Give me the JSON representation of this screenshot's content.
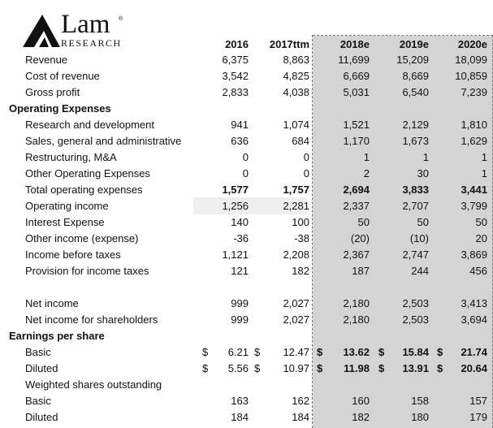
{
  "logo": {
    "name": "Lam",
    "reg": "®",
    "sub": "RESEARCH"
  },
  "headers": [
    "2016",
    "2017ttm",
    "2018e",
    "2019e",
    "2020e"
  ],
  "rows": [
    {
      "label": "Revenue",
      "type": "item",
      "v": [
        "6,375",
        "8,863",
        "11,699",
        "15,209",
        "18,099"
      ]
    },
    {
      "label": "Cost of revenue",
      "type": "item",
      "v": [
        "3,542",
        "4,825",
        "6,669",
        "8,669",
        "10,859"
      ]
    },
    {
      "label": "Gross profit",
      "type": "item",
      "v": [
        "2,833",
        "4,038",
        "5,031",
        "6,540",
        "7,239"
      ]
    },
    {
      "label": "Operating Expenses",
      "type": "section",
      "v": [
        "",
        "",
        "",
        "",
        ""
      ]
    },
    {
      "label": "Research and development",
      "type": "item",
      "v": [
        "941",
        "1,074",
        "1,521",
        "2,129",
        "1,810"
      ]
    },
    {
      "label": "Sales, general and administrative",
      "type": "item",
      "v": [
        "636",
        "684",
        "1,170",
        "1,673",
        "1,629"
      ]
    },
    {
      "label": "Restructuring, M&A",
      "type": "item",
      "v": [
        "0",
        "0",
        "1",
        "1",
        "1"
      ]
    },
    {
      "label": "Other Operating Expenses",
      "type": "item",
      "v": [
        "0",
        "0",
        "2",
        "30",
        "1"
      ]
    },
    {
      "label": "Total operating expenses",
      "type": "item",
      "bold": true,
      "v": [
        "1,577",
        "1,757",
        "2,694",
        "3,833",
        "3,441"
      ]
    },
    {
      "label": "Operating income",
      "type": "item",
      "v": [
        "1,256",
        "2,281",
        "2,337",
        "2,707",
        "3,799"
      ]
    },
    {
      "label": "Interest Expense",
      "type": "item",
      "v": [
        "140",
        "100",
        "50",
        "50",
        "50"
      ]
    },
    {
      "label": "Other income (expense)",
      "type": "item",
      "v": [
        "-36",
        "-38",
        "(20)",
        "(10)",
        "20"
      ]
    },
    {
      "label": "Income before taxes",
      "type": "item",
      "v": [
        "1,121",
        "2,208",
        "2,367",
        "2,747",
        "3,869"
      ]
    },
    {
      "label": "Provision for income taxes",
      "type": "item",
      "v": [
        "121",
        "182",
        "187",
        "244",
        "456"
      ]
    },
    {
      "label": "",
      "type": "blank",
      "v": [
        "",
        "",
        "",
        "",
        ""
      ]
    },
    {
      "label": "Net income",
      "type": "item",
      "v": [
        "999",
        "2,027",
        "2,180",
        "2,503",
        "3,413"
      ]
    },
    {
      "label": "Net income for shareholders",
      "type": "item",
      "v": [
        "999",
        "2,027",
        "2,180",
        "2,503",
        "3,694"
      ]
    },
    {
      "label": "Earnings per share",
      "type": "section",
      "v": [
        "",
        "",
        "",
        "",
        ""
      ]
    },
    {
      "label": "Basic",
      "type": "eps",
      "v": [
        "6.21",
        "12.47",
        "13.62",
        "15.84",
        "21.74"
      ]
    },
    {
      "label": "Diluted",
      "type": "eps",
      "v": [
        "5.56",
        "10.97",
        "11.98",
        "13.91",
        "20.64"
      ]
    },
    {
      "label": "Weighted  shares outstanding",
      "type": "item",
      "v": [
        "",
        "",
        "",
        "",
        ""
      ]
    },
    {
      "label": "Basic",
      "type": "item",
      "v": [
        "163",
        "162",
        "160",
        "158",
        "157"
      ]
    },
    {
      "label": "Diluted",
      "type": "item",
      "v": [
        "184",
        "184",
        "182",
        "180",
        "179"
      ]
    }
  ],
  "currency_symbol": "$"
}
